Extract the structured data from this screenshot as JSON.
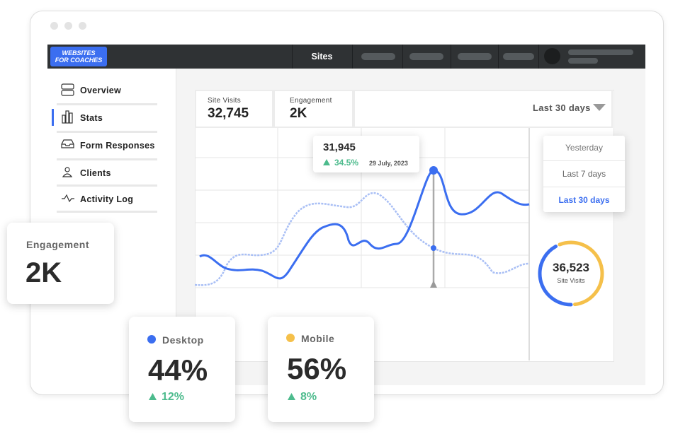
{
  "header": {
    "logo_top": "WEBSITES",
    "logo_bottom": "FOR COACHES",
    "nav": "Sites"
  },
  "sidebar": {
    "items": [
      "Overview",
      "Stats",
      "Form Responses",
      "Clients",
      "Activity Log"
    ]
  },
  "stats": [
    {
      "label": "Site Visits",
      "value": "32,745"
    },
    {
      "label": "Engagement",
      "value": "2K"
    }
  ],
  "range": {
    "selected": "Last 30 days",
    "options": [
      "Yesterday",
      "Last 7 days",
      "Last 30 days"
    ]
  },
  "tooltip": {
    "value": "31,945",
    "change": "34.5%",
    "date": "29 July, 2023"
  },
  "donut": {
    "value": "36,523",
    "label": "Site Visits"
  },
  "cards": {
    "engagement": {
      "label": "Engagement",
      "value": "2K"
    },
    "devices": [
      {
        "name": "Desktop",
        "color": "#3b6ef0",
        "value": 44,
        "value_label": "44%",
        "change": "12%"
      },
      {
        "name": "Mobile",
        "color": "#f5c04a",
        "value": 56,
        "value_label": "56%",
        "change": "8%"
      }
    ]
  }
}
